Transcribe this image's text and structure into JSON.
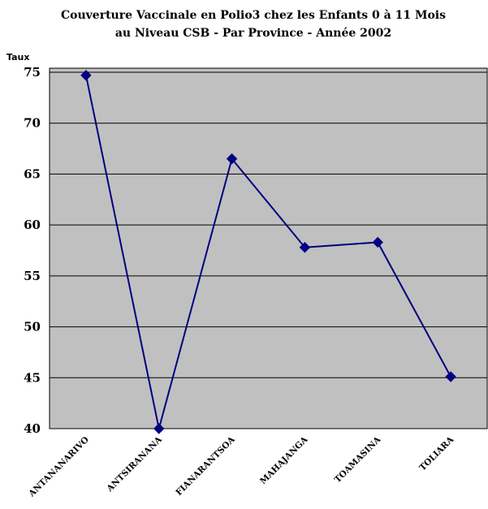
{
  "chart_data": {
    "type": "line",
    "title_lines": [
      "Couverture Vaccinale en Polio3 chez les Enfants 0 à 11  Mois",
      "au Niveau CSB - Par Province - Année 2002"
    ],
    "ylabel": "Taux",
    "xlabel": "",
    "categories": [
      "ANTANANARIVO",
      "ANTSIRANANA",
      "FIANARANTSOA",
      "MAHAJANGA",
      "TOAMASINA",
      "TOLIARA"
    ],
    "series": [
      {
        "values": [
          74.7,
          40.0,
          66.5,
          57.8,
          58.3,
          45.1
        ]
      }
    ],
    "ylim": [
      40,
      75
    ],
    "yticks": [
      40,
      45,
      50,
      55,
      60,
      65,
      70,
      75
    ],
    "grid": true,
    "colors": {
      "plot_bg": "#c0c0c0",
      "line": "#000080",
      "marker": "#000080",
      "grid": "#000000"
    }
  }
}
